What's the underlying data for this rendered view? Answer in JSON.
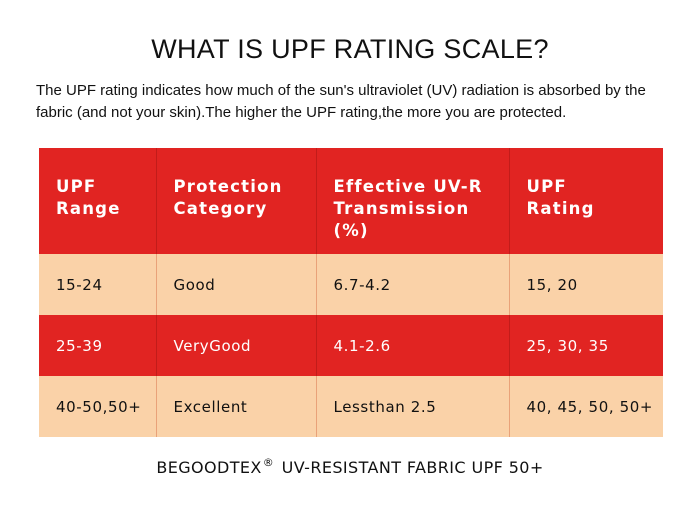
{
  "header": {
    "title": "WHAT IS UPF RATING SCALE?",
    "intro": "The UPF rating indicates how much of the sun's ultraviolet (UV) radiation is absorbed by the fabric (and not your skin).The higher the UPF rating,the more you are protected."
  },
  "table": {
    "columns": [
      {
        "line1": "UPF",
        "line2": "Range",
        "line3": ""
      },
      {
        "line1": "Protection",
        "line2": "Category",
        "line3": ""
      },
      {
        "line1": "Effective UV-R",
        "line2": "Transmission",
        "line3": "(%)"
      },
      {
        "line1": "UPF",
        "line2": "Rating",
        "line3": ""
      }
    ],
    "rows": [
      {
        "range": "15-24",
        "category": "Good",
        "transmission": "6.7-4.2",
        "rating": "15, 20"
      },
      {
        "range": "25-39",
        "category": "VeryGood",
        "transmission": "4.1-2.6",
        "rating": "25, 30, 35"
      },
      {
        "range": "40-50,50+",
        "category": "Excellent",
        "transmission": "Lessthan 2.5",
        "rating": "40, 45, 50, 50+"
      }
    ]
  },
  "footer": {
    "brand": "BEGOODTEX",
    "registered": "®",
    "tagline": "UV-RESISTANT FABRIC UPF 50+"
  },
  "colors": {
    "header_red": "#e12422",
    "row_peach": "#fad2a8",
    "text_dark": "#111111",
    "text_light": "#ffffff"
  }
}
